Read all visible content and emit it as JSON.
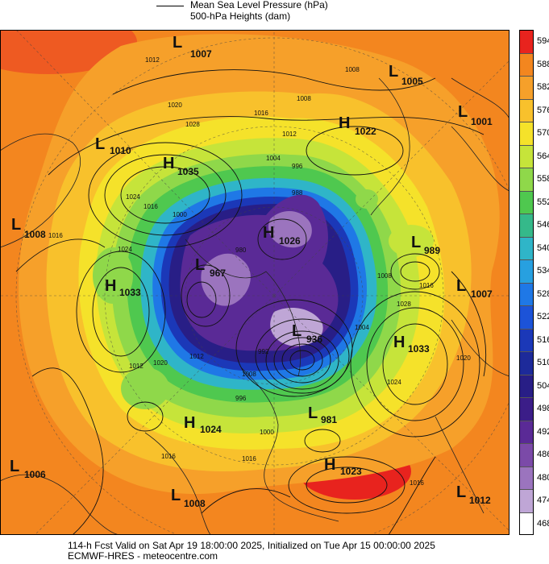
{
  "legend": {
    "line1": "Mean Sea Level Pressure (hPa)",
    "line2": "500-hPa Heights (dam)"
  },
  "colorbar": {
    "labels": [
      "594",
      "588",
      "582",
      "576",
      "570",
      "564",
      "558",
      "552",
      "546",
      "540",
      "534",
      "528",
      "522",
      "516",
      "510",
      "504",
      "498",
      "492",
      "486",
      "480",
      "474",
      "468"
    ],
    "colors": [
      "#e8231e",
      "#f3861f",
      "#f6a02a",
      "#f8c12c",
      "#f5e22a",
      "#c6e43a",
      "#8fd84a",
      "#4fc84f",
      "#35b98a",
      "#2fb5c8",
      "#27a0e0",
      "#1f78e6",
      "#1c53d8",
      "#1b38b8",
      "#1d2a9a",
      "#281e86",
      "#3b1d88",
      "#5a2a96",
      "#7b4aa8",
      "#9b74be",
      "#bfa6d6",
      "#ffffff"
    ]
  },
  "pressure_centers": [
    {
      "type": "L",
      "value": "1007"
    },
    {
      "type": "L",
      "value": "1005"
    },
    {
      "type": "L",
      "value": "1001"
    },
    {
      "type": "H",
      "value": "1022"
    },
    {
      "type": "L",
      "value": "1010"
    },
    {
      "type": "H",
      "value": "1035"
    },
    {
      "type": "L",
      "value": "1008"
    },
    {
      "type": "H",
      "value": "1026"
    },
    {
      "type": "L",
      "value": "989"
    },
    {
      "type": "L",
      "value": "967"
    },
    {
      "type": "H",
      "value": "1033"
    },
    {
      "type": "L",
      "value": "1007"
    },
    {
      "type": "L",
      "value": "936"
    },
    {
      "type": "H",
      "value": "1033"
    },
    {
      "type": "L",
      "value": "981"
    },
    {
      "type": "H",
      "value": "1024"
    },
    {
      "type": "L",
      "value": "1006"
    },
    {
      "type": "H",
      "value": "1023"
    },
    {
      "type": "L",
      "value": "1008"
    },
    {
      "type": "L",
      "value": "1012"
    }
  ],
  "isobar_labels": [
    "1012",
    "1008",
    "1020",
    "1028",
    "1016",
    "1012",
    "1008",
    "1024",
    "1016",
    "1024",
    "1016",
    "1004",
    "996",
    "988",
    "980",
    "1000",
    "1008",
    "1028",
    "1020",
    "1024",
    "1016",
    "1012",
    "1020",
    "1012",
    "1008",
    "1004",
    "996",
    "992",
    "1000",
    "1016",
    "1016",
    "1016"
  ],
  "footer": {
    "line1": "114-h Fcst Valid on Sat Apr 19 18:00:00 2025, Initialized on Tue Apr 15 00:00:00 2025",
    "line2": "ECMWF-HRES - meteocentre.com"
  }
}
